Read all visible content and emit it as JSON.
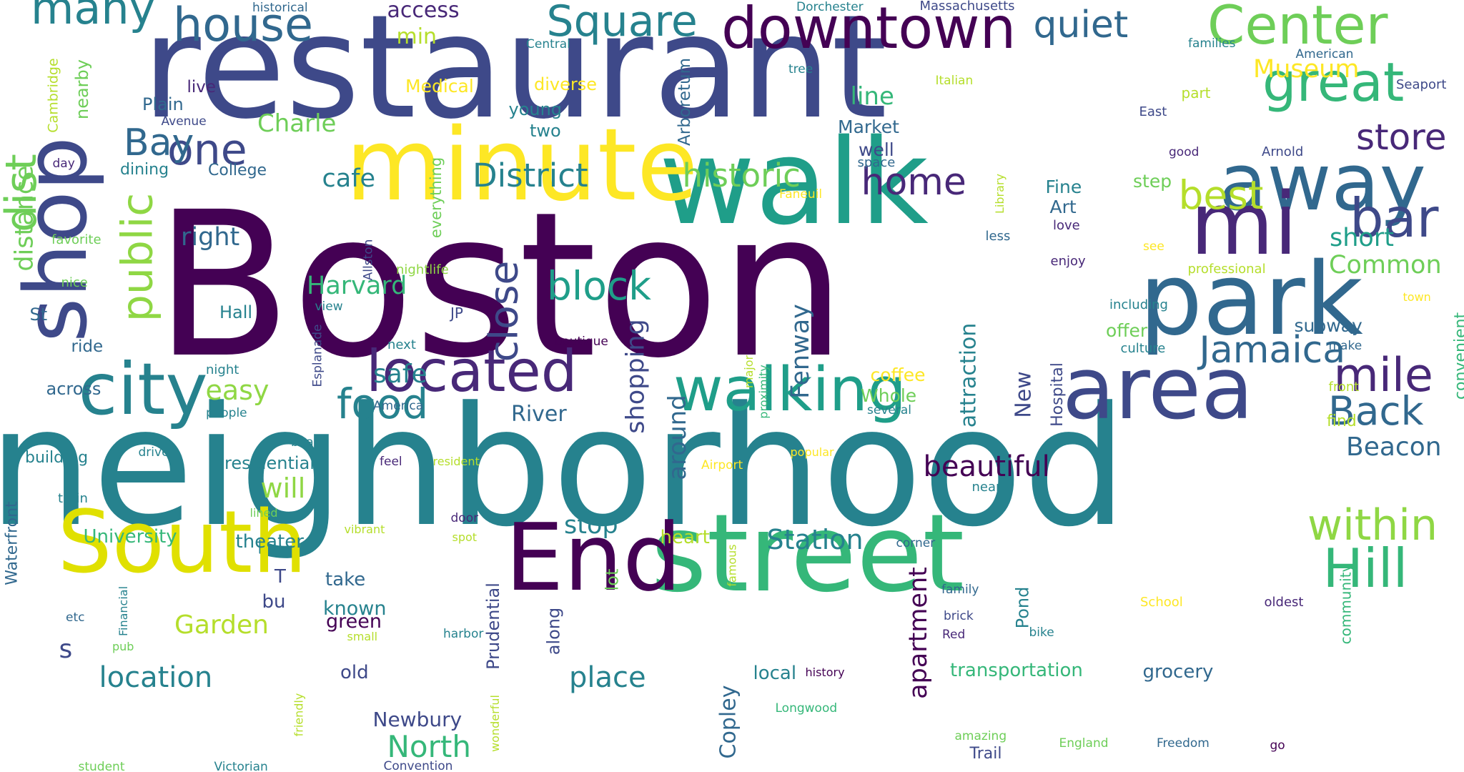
{
  "palette": [
    "#440154",
    "#482878",
    "#3e4989",
    "#31688e",
    "#26828e",
    "#1f9e89",
    "#35b779",
    "#6ece58",
    "#b5de2b",
    "#fde725"
  ],
  "words": [
    {
      "text": "Boston",
      "color": "#440154"
    },
    {
      "text": "restaurant",
      "color": "#3e4989"
    },
    {
      "text": "neighborhood",
      "color": "#26828e"
    },
    {
      "text": "walk",
      "color": "#1f9e89"
    },
    {
      "text": "minute",
      "color": "#fde725"
    },
    {
      "text": "street",
      "color": "#35b779"
    },
    {
      "text": "park",
      "color": "#31688e"
    },
    {
      "text": "area",
      "color": "#3e4989"
    },
    {
      "text": "South",
      "color": "#e0e000"
    },
    {
      "text": "End",
      "color": "#440154"
    },
    {
      "text": "shop",
      "color": "#3e4989"
    },
    {
      "text": "away",
      "color": "#31688e"
    },
    {
      "text": "mi",
      "color": "#482878"
    },
    {
      "text": "city",
      "color": "#26828e"
    },
    {
      "text": "walking",
      "color": "#1f9e89"
    },
    {
      "text": "downtown",
      "color": "#440154"
    },
    {
      "text": "located",
      "color": "#482878"
    },
    {
      "text": "Center",
      "color": "#6ece58"
    },
    {
      "text": "Square",
      "color": "#26828e"
    },
    {
      "text": "house",
      "color": "#31688e"
    },
    {
      "text": "many",
      "color": "#26828e"
    },
    {
      "text": "great",
      "color": "#35b779"
    },
    {
      "text": "bar",
      "color": "#3e4989"
    },
    {
      "text": "Hill",
      "color": "#35b779"
    },
    {
      "text": "within",
      "color": "#8fd744"
    },
    {
      "text": "food",
      "color": "#26828e"
    },
    {
      "text": "one",
      "color": "#3e4989"
    },
    {
      "text": "public",
      "color": "#8fd744"
    },
    {
      "text": "dist",
      "color": "#6ece58"
    },
    {
      "text": "Back",
      "color": "#31688e"
    },
    {
      "text": "mile",
      "color": "#482878"
    },
    {
      "text": "Jamaica",
      "color": "#31688e"
    },
    {
      "text": "block",
      "color": "#1f9e89"
    },
    {
      "text": "close",
      "color": "#3e4989"
    },
    {
      "text": "quiet",
      "color": "#31688e"
    },
    {
      "text": "store",
      "color": "#482878"
    },
    {
      "text": "best",
      "color": "#b5de2b"
    },
    {
      "text": "home",
      "color": "#482878"
    },
    {
      "text": "Bay",
      "color": "#31688e"
    },
    {
      "text": "District",
      "color": "#26828e"
    },
    {
      "text": "historic",
      "color": "#6ece58"
    },
    {
      "text": "beautiful",
      "color": "#440154"
    },
    {
      "text": "location",
      "color": "#26828e"
    },
    {
      "text": "place",
      "color": "#26828e"
    },
    {
      "text": "North",
      "color": "#35b779"
    },
    {
      "text": "Station",
      "color": "#26828e"
    },
    {
      "text": "Garden",
      "color": "#b5de2b"
    },
    {
      "text": "apartment",
      "color": "#440154"
    },
    {
      "text": "transportation",
      "color": "#35b779"
    },
    {
      "text": "Beacon",
      "color": "#31688e"
    },
    {
      "text": "Fenway",
      "color": "#31688e"
    },
    {
      "text": "shopping",
      "color": "#3e4989"
    },
    {
      "text": "distance",
      "color": "#6ece58"
    },
    {
      "text": "Harvard",
      "color": "#35b779"
    },
    {
      "text": "Common",
      "color": "#6ece58"
    },
    {
      "text": "short",
      "color": "#1f9e89"
    },
    {
      "text": "Museum",
      "color": "#fde725"
    },
    {
      "text": "cafe",
      "color": "#26828e"
    },
    {
      "text": "right",
      "color": "#31688e"
    },
    {
      "text": "will",
      "color": "#8fd744"
    },
    {
      "text": "easy",
      "color": "#8fd744"
    },
    {
      "text": "safe",
      "color": "#26828e"
    },
    {
      "text": "stop",
      "color": "#26828e"
    },
    {
      "text": "line",
      "color": "#35b779"
    },
    {
      "text": "Charle",
      "color": "#6ece58"
    },
    {
      "text": "access",
      "color": "#482878"
    },
    {
      "text": "min",
      "color": "#b5de2b"
    },
    {
      "text": "attraction",
      "color": "#26828e"
    },
    {
      "text": "around",
      "color": "#31688e"
    },
    {
      "text": "Copley",
      "color": "#31688e"
    },
    {
      "text": "s",
      "color": "#3e4989"
    },
    {
      "text": "Newbury",
      "color": "#3e4989"
    },
    {
      "text": "New",
      "color": "#3e4989"
    },
    {
      "text": "River",
      "color": "#31688e"
    },
    {
      "text": "University",
      "color": "#35b779"
    },
    {
      "text": "known",
      "color": "#26828e"
    },
    {
      "text": "theater",
      "color": "#26828e"
    },
    {
      "text": "heart",
      "color": "#b5de2b"
    },
    {
      "text": "take",
      "color": "#31688e"
    },
    {
      "text": "green",
      "color": "#440154"
    },
    {
      "text": "T",
      "color": "#3e4989"
    },
    {
      "text": "bu",
      "color": "#3e4989"
    },
    {
      "text": "old",
      "color": "#3e4989"
    },
    {
      "text": "local",
      "color": "#26828e"
    },
    {
      "text": "grocery",
      "color": "#31688e"
    },
    {
      "text": "offer",
      "color": "#6ece58"
    },
    {
      "text": "subway",
      "color": "#31688e"
    },
    {
      "text": "Fine",
      "color": "#26828e"
    },
    {
      "text": "Art",
      "color": "#31688e"
    },
    {
      "text": "step",
      "color": "#6ece58"
    },
    {
      "text": "Market",
      "color": "#31688e"
    },
    {
      "text": "well",
      "color": "#3e4989"
    },
    {
      "text": "coffee",
      "color": "#fde725"
    },
    {
      "text": "Whole",
      "color": "#6ece58"
    },
    {
      "text": "Prudential",
      "color": "#3e4989"
    },
    {
      "text": "along",
      "color": "#3e4989"
    },
    {
      "text": "lot",
      "color": "#6ece58"
    },
    {
      "text": "Pond",
      "color": "#26828e"
    },
    {
      "text": "Hospital",
      "color": "#3e4989"
    },
    {
      "text": "Medical",
      "color": "#fde725"
    },
    {
      "text": "diverse",
      "color": "#fde725"
    },
    {
      "text": "young",
      "color": "#26828e"
    },
    {
      "text": "two",
      "color": "#26828e"
    },
    {
      "text": "Plain",
      "color": "#31688e"
    },
    {
      "text": "live",
      "color": "#482878"
    },
    {
      "text": "College",
      "color": "#31688e"
    },
    {
      "text": "dining",
      "color": "#26828e"
    },
    {
      "text": "Hall",
      "color": "#26828e"
    },
    {
      "text": "Arboretum",
      "color": "#31688e"
    },
    {
      "text": "nearby",
      "color": "#6ece58"
    },
    {
      "text": "residential",
      "color": "#26828e"
    },
    {
      "text": "building",
      "color": "#26828e"
    },
    {
      "text": "across",
      "color": "#31688e"
    },
    {
      "text": "ride",
      "color": "#31688e"
    },
    {
      "text": "St",
      "color": "#31688e"
    },
    {
      "text": "favorite",
      "color": "#6ece58"
    },
    {
      "text": "day",
      "color": "#482878"
    },
    {
      "text": "Cambridge",
      "color": "#b5de2b"
    },
    {
      "text": "everything",
      "color": "#6ece58"
    },
    {
      "text": "nightlife",
      "color": "#8fd744"
    },
    {
      "text": "Allston",
      "color": "#3e4989"
    },
    {
      "text": "Library",
      "color": "#b5de2b"
    },
    {
      "text": "Faneuil",
      "color": "#fde725"
    },
    {
      "text": "space",
      "color": "#31688e"
    },
    {
      "text": "less",
      "color": "#31688e"
    },
    {
      "text": "enjoy",
      "color": "#482878"
    },
    {
      "text": "love",
      "color": "#482878"
    },
    {
      "text": "professional",
      "color": "#b5de2b"
    },
    {
      "text": "see",
      "color": "#fde725"
    },
    {
      "text": "including",
      "color": "#26828e"
    },
    {
      "text": "culture",
      "color": "#26828e"
    },
    {
      "text": "make",
      "color": "#31688e"
    },
    {
      "text": "convenient",
      "color": "#35b779"
    },
    {
      "text": "front",
      "color": "#b5de2b"
    },
    {
      "text": "find",
      "color": "#b5de2b"
    },
    {
      "text": "town",
      "color": "#fde725"
    },
    {
      "text": "East",
      "color": "#3e4989"
    },
    {
      "text": "good",
      "color": "#482878"
    },
    {
      "text": "Arnold",
      "color": "#3e4989"
    },
    {
      "text": "part",
      "color": "#b5de2b"
    },
    {
      "text": "American",
      "color": "#31688e"
    },
    {
      "text": "Seaport",
      "color": "#3e4989"
    },
    {
      "text": "families",
      "color": "#26828e"
    },
    {
      "text": "Massachusetts",
      "color": "#3e4989"
    },
    {
      "text": "Dorchester",
      "color": "#26828e"
    },
    {
      "text": "Italian",
      "color": "#b5de2b"
    },
    {
      "text": "tree",
      "color": "#26828e"
    },
    {
      "text": "Central",
      "color": "#26828e"
    },
    {
      "text": "historical",
      "color": "#31688e"
    },
    {
      "text": "Avenue",
      "color": "#3e4989"
    },
    {
      "text": "Esplanade",
      "color": "#3e4989"
    },
    {
      "text": "view",
      "color": "#26828e"
    },
    {
      "text": "next",
      "color": "#26828e"
    },
    {
      "text": "boutique",
      "color": "#440154"
    },
    {
      "text": "night",
      "color": "#26828e"
    },
    {
      "text": "people",
      "color": "#26828e"
    },
    {
      "text": "America",
      "color": "#31688e"
    },
    {
      "text": "JP",
      "color": "#3e4989"
    },
    {
      "text": "nice",
      "color": "#6ece58"
    },
    {
      "text": "beach",
      "color": "#26828e"
    },
    {
      "text": "drive",
      "color": "#26828e"
    },
    {
      "text": "feel",
      "color": "#482878"
    },
    {
      "text": "resident",
      "color": "#b5de2b"
    },
    {
      "text": "Airport",
      "color": "#fde725"
    },
    {
      "text": "popular",
      "color": "#fde725"
    },
    {
      "text": "major",
      "color": "#b5de2b"
    },
    {
      "text": "proximity",
      "color": "#35b779"
    },
    {
      "text": "several",
      "color": "#26828e"
    },
    {
      "text": "near",
      "color": "#26828e"
    },
    {
      "text": "Waterfront",
      "color": "#31688e"
    },
    {
      "text": "train",
      "color": "#26828e"
    },
    {
      "text": "lined",
      "color": "#6ece58"
    },
    {
      "text": "door",
      "color": "#482878"
    },
    {
      "text": "spot",
      "color": "#b5de2b"
    },
    {
      "text": "vibrant",
      "color": "#b5de2b"
    },
    {
      "text": "corner",
      "color": "#31688e"
    },
    {
      "text": "famous",
      "color": "#b5de2b"
    },
    {
      "text": "family",
      "color": "#31688e"
    },
    {
      "text": "brick",
      "color": "#3e4989"
    },
    {
      "text": "Red",
      "color": "#482878"
    },
    {
      "text": "bike",
      "color": "#26828e"
    },
    {
      "text": "School",
      "color": "#fde725"
    },
    {
      "text": "oldest",
      "color": "#482878"
    },
    {
      "text": "community",
      "color": "#35b779"
    },
    {
      "text": "etc",
      "color": "#31688e"
    },
    {
      "text": "Financial",
      "color": "#26828e"
    },
    {
      "text": "pub",
      "color": "#6ece58"
    },
    {
      "text": "small",
      "color": "#b5de2b"
    },
    {
      "text": "harbor",
      "color": "#26828e"
    },
    {
      "text": "history",
      "color": "#440154"
    },
    {
      "text": "Longwood",
      "color": "#35b779"
    },
    {
      "text": "friendly",
      "color": "#b5de2b"
    },
    {
      "text": "wonderful",
      "color": "#b5de2b"
    },
    {
      "text": "amazing",
      "color": "#6ece58"
    },
    {
      "text": "Trail",
      "color": "#3e4989"
    },
    {
      "text": "England",
      "color": "#6ece58"
    },
    {
      "text": "Freedom",
      "color": "#31688e"
    },
    {
      "text": "go",
      "color": "#440154"
    },
    {
      "text": "student",
      "color": "#6ece58"
    },
    {
      "text": "Victorian",
      "color": "#26828e"
    },
    {
      "text": "Convention",
      "color": "#3e4989"
    }
  ]
}
